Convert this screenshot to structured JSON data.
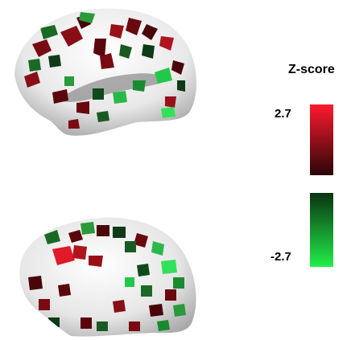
{
  "colorbar": {
    "title": "Z-score",
    "max_label": "2.7",
    "min_label": "-2.7",
    "positive_colors": [
      "#ff1a2e",
      "#2a0508"
    ],
    "negative_colors": [
      "#0a3312",
      "#22ee4a"
    ]
  },
  "colors": {
    "cortex": "#ececec",
    "positive": "#b0141e",
    "negative": "#1fc246"
  }
}
